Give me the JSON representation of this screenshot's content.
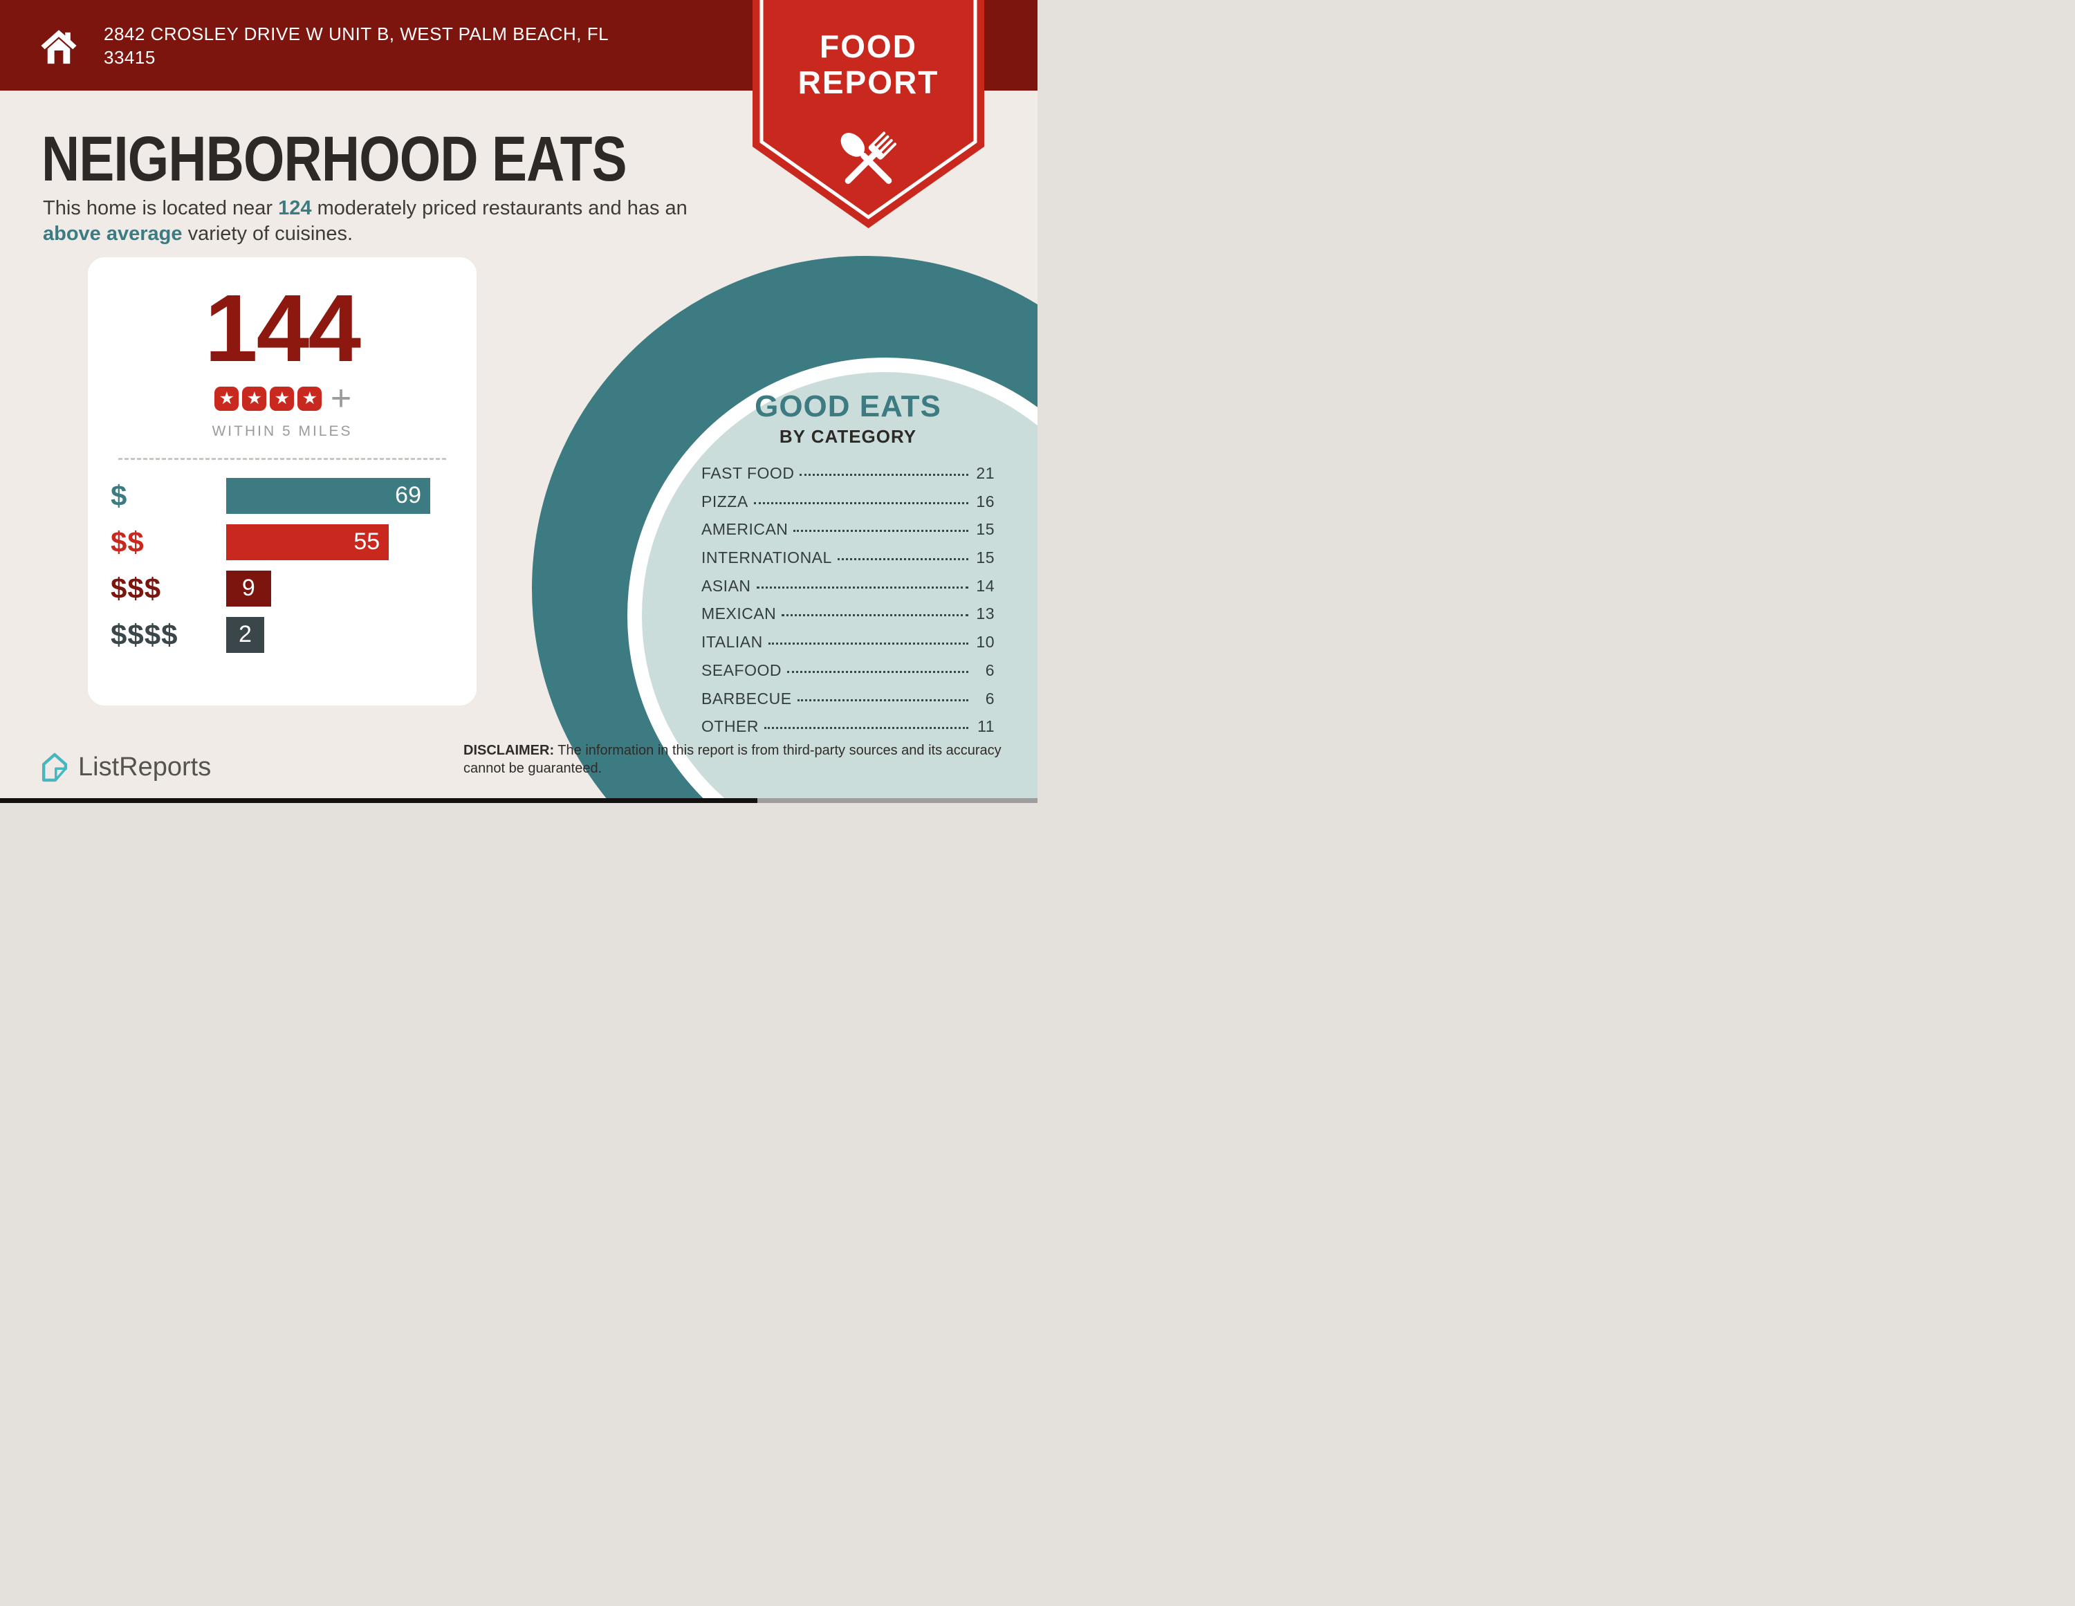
{
  "colors": {
    "header_bg": "#7B150E",
    "badge_red": "#C8281E",
    "accent_teal": "#3B7B81",
    "light_teal_fill": "#CBDDDA",
    "background_cream": "#F0EBE6",
    "numeral_dark_red": "#8C180F",
    "slate": "#3A464A",
    "gray_text": "#9B9B9B",
    "logo_teal": "#47B7BF"
  },
  "header": {
    "address": "2842 CROSLEY DRIVE W UNIT B, WEST PALM BEACH, FL 33415"
  },
  "badge": {
    "line1": "FOOD",
    "line2": "REPORT"
  },
  "intro": {
    "title": "NEIGHBORHOOD EATS",
    "subtitle_before_count": "This home is located near ",
    "subtitle_count": "124",
    "subtitle_after_count": " moderately priced restaurants and has an ",
    "subtitle_highlight": "above average",
    "subtitle_after_highlight": " variety of cuisines."
  },
  "stats_card": {
    "total": "144",
    "star_count": 4,
    "plus": "+",
    "radius_label": "WITHIN 5 MILES",
    "bars": [
      {
        "label": "$",
        "value": 69,
        "color": "#3B7B81"
      },
      {
        "label": "$$",
        "value": 55,
        "color": "#C8281E"
      },
      {
        "label": "$$$",
        "value": 9,
        "color": "#7C150E"
      },
      {
        "label": "$$$$",
        "value": 2,
        "color": "#3A464A"
      }
    ]
  },
  "good_eats": {
    "title": "GOOD EATS",
    "subtitle": "BY CATEGORY",
    "items": [
      {
        "label": "FAST FOOD",
        "value": "21"
      },
      {
        "label": "PIZZA",
        "value": "16"
      },
      {
        "label": "AMERICAN",
        "value": "15"
      },
      {
        "label": "INTERNATIONAL",
        "value": "15"
      },
      {
        "label": "ASIAN",
        "value": "14"
      },
      {
        "label": "MEXICAN",
        "value": "13"
      },
      {
        "label": "ITALIAN",
        "value": "10"
      },
      {
        "label": "SEAFOOD",
        "value": "6"
      },
      {
        "label": "BARBECUE",
        "value": "6"
      },
      {
        "label": "OTHER",
        "value": "11"
      }
    ]
  },
  "footer": {
    "brand": "ListReports",
    "disclaimer_label": "DISCLAIMER:",
    "disclaimer_text": " The information in this report is from third-party sources and its accuracy cannot be guaranteed."
  },
  "chart_data": [
    {
      "type": "bar",
      "orientation": "horizontal",
      "title": "144 moderately priced restaurants within 5 miles, by price level",
      "categories": [
        "$",
        "$$",
        "$$$",
        "$$$$"
      ],
      "values": [
        69,
        55,
        9,
        2
      ],
      "total_label": "144",
      "rating_stars": 4,
      "rating_suffix": "+",
      "xlabel": "",
      "ylabel": "price level",
      "xlim": [
        0,
        69
      ],
      "grid": false,
      "legend_position": "none",
      "value_labels": "inside-end",
      "bar_colors": [
        "#3B7B81",
        "#C8281E",
        "#7C150E",
        "#3A464A"
      ]
    },
    {
      "type": "table",
      "title": "GOOD EATS BY CATEGORY",
      "categories": [
        "FAST FOOD",
        "PIZZA",
        "AMERICAN",
        "INTERNATIONAL",
        "ASIAN",
        "MEXICAN",
        "ITALIAN",
        "SEAFOOD",
        "BARBECUE",
        "OTHER"
      ],
      "values": [
        21,
        16,
        15,
        15,
        14,
        13,
        10,
        6,
        6,
        11
      ]
    }
  ]
}
